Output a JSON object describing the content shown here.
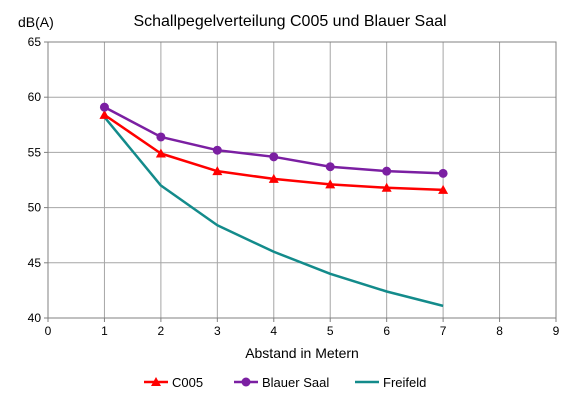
{
  "chart_data": {
    "type": "line",
    "title": "Schallpegelverteilung C005 und Blauer Saal",
    "ylabel": "dB(A)",
    "xlabel": "Abstand in Metern",
    "xlim": [
      0,
      9
    ],
    "ylim": [
      40,
      65
    ],
    "x_ticks": [
      "0",
      "1",
      "2",
      "3",
      "4",
      "5",
      "6",
      "7",
      "8",
      "9"
    ],
    "y_ticks": [
      "40",
      "45",
      "50",
      "55",
      "60",
      "65"
    ],
    "grid": true,
    "legend_position": "bottom",
    "series": [
      {
        "name": "C005",
        "color": "#ff0000",
        "marker": "triangle",
        "x": [
          1,
          2,
          3,
          4,
          5,
          6,
          7
        ],
        "values": [
          58.4,
          54.9,
          53.3,
          52.6,
          52.1,
          51.8,
          51.6
        ]
      },
      {
        "name": "Blauer Saal",
        "color": "#7b1fa2",
        "marker": "circle",
        "x": [
          1,
          2,
          3,
          4,
          5,
          6,
          7
        ],
        "values": [
          59.1,
          56.4,
          55.2,
          54.6,
          53.7,
          53.3,
          53.1
        ]
      },
      {
        "name": "Freifeld",
        "color": "#138b8b",
        "marker": "none",
        "x": [
          1,
          2,
          3,
          4,
          5,
          6,
          7
        ],
        "values": [
          58.2,
          52.0,
          48.4,
          46.0,
          44.0,
          42.4,
          41.1
        ]
      }
    ]
  }
}
